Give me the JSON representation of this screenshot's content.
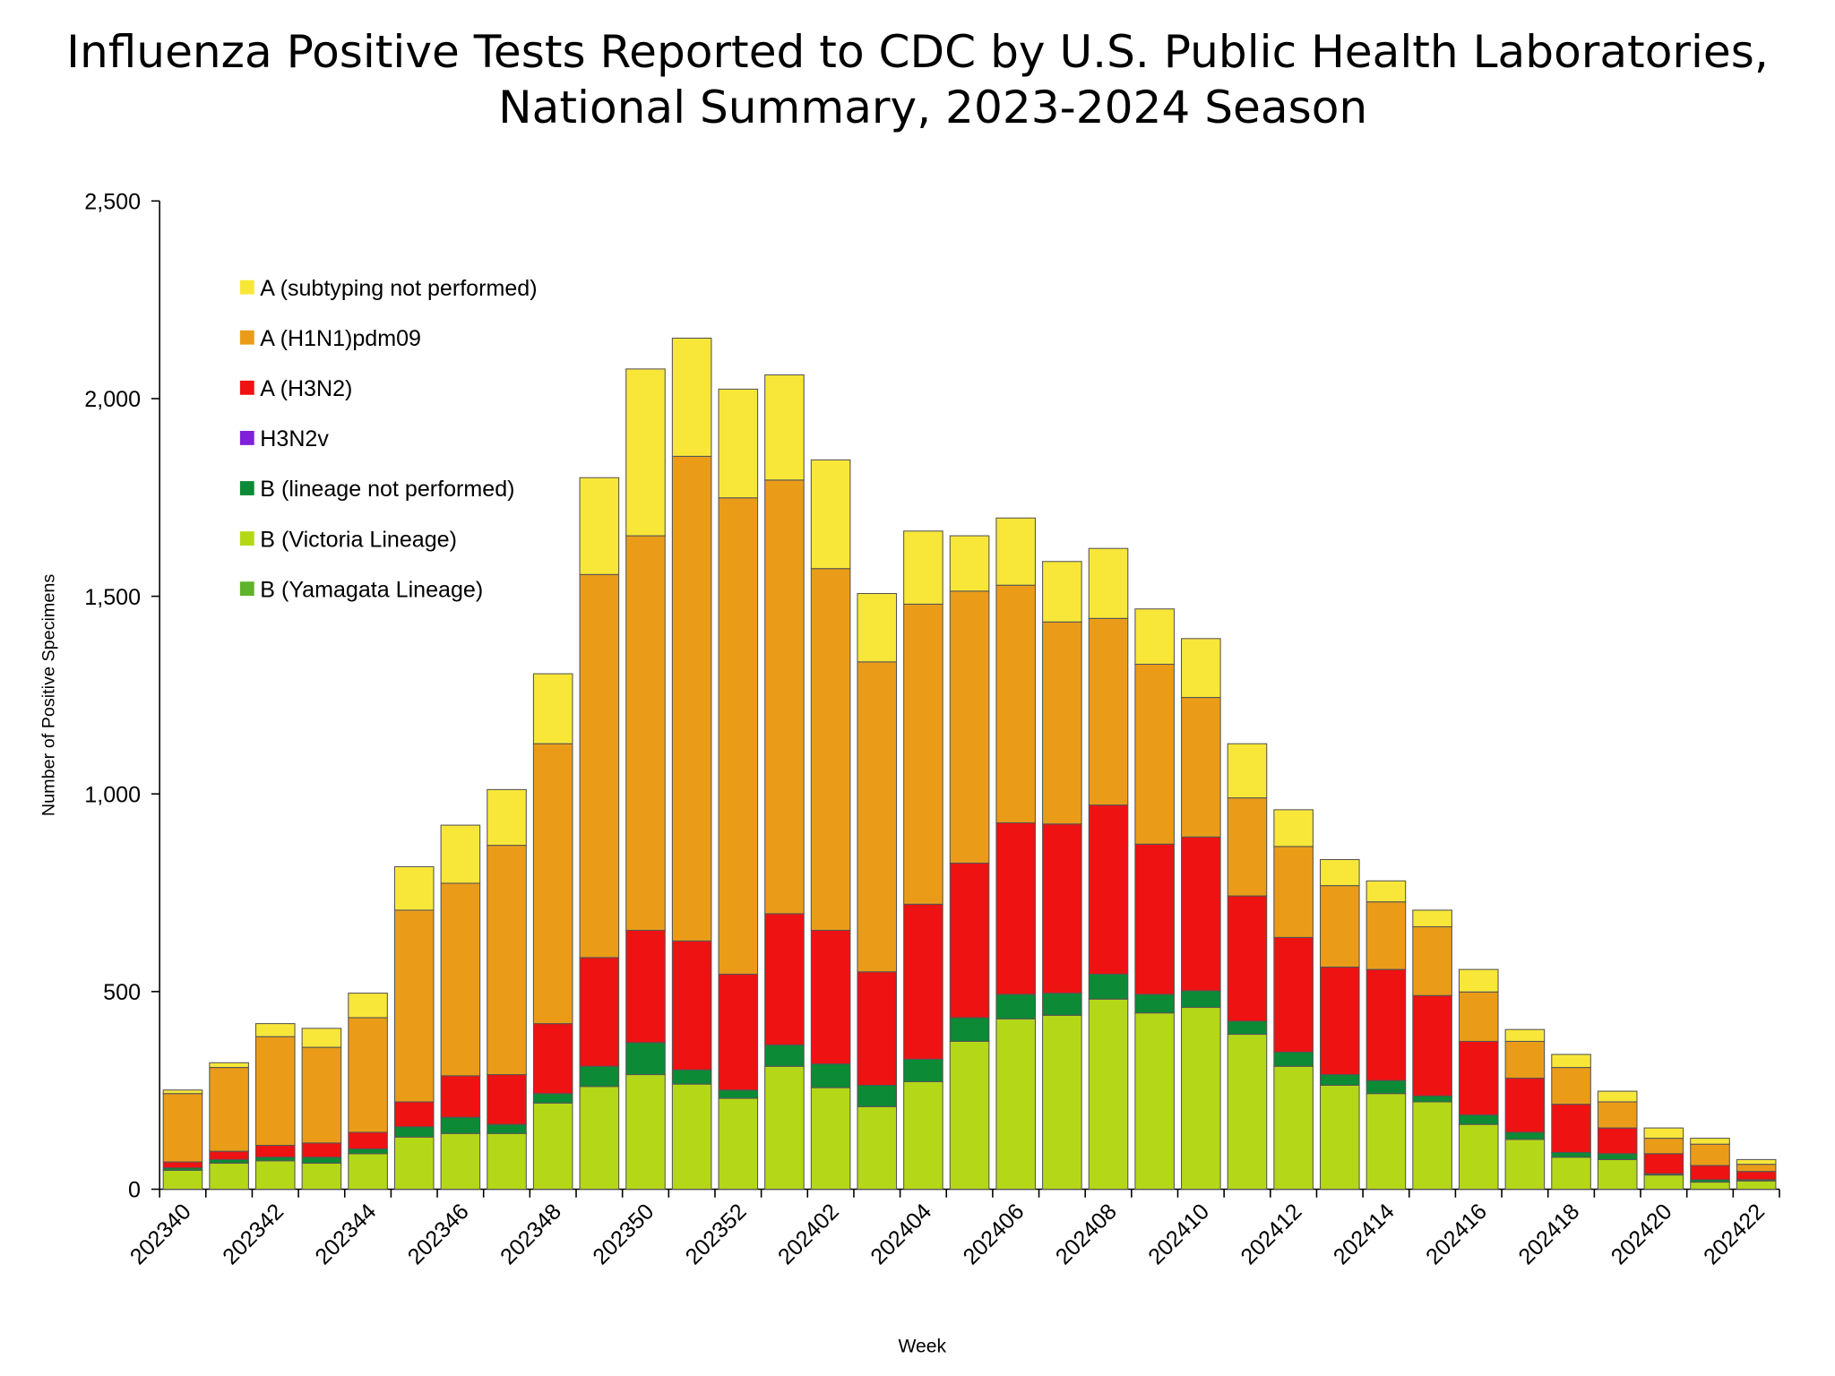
{
  "chart_data": {
    "type": "stacked_bar",
    "title": [
      "Influenza Positive Tests Reported to CDC by U.S. Public Health Laboratories,",
      "National Summary, 2023-2024 Season"
    ],
    "x_label": "Week",
    "y_label": "Number of Positive Specimens",
    "categories": [
      "202340",
      null,
      "202342",
      null,
      "202344",
      null,
      "202346",
      null,
      "202348",
      null,
      "202350",
      null,
      "202352",
      null,
      "202402",
      null,
      "202404",
      null,
      "202406",
      null,
      "202408",
      null,
      "202410",
      null,
      "202412",
      null,
      "202414",
      null,
      "202416",
      null,
      "202418",
      null,
      "202420",
      null,
      "202422"
    ],
    "ylim": [
      0,
      2500
    ],
    "yticks": [
      0,
      500,
      {
        "value": 1000,
        "label": "1,000"
      },
      {
        "value": 1500,
        "label": "1,500"
      },
      {
        "value": 2000,
        "label": "2,000"
      },
      {
        "value": 2500,
        "label": "2,500"
      }
    ],
    "legend": "upper left",
    "series": [
      {
        "name": "A (subtyping not performed)",
        "color": "#f8e739",
        "values": [
          9,
          12,
          33,
          48,
          62,
          110,
          147,
          141,
          177,
          245,
          422,
          299,
          275,
          266,
          275,
          173,
          185,
          140,
          170,
          153,
          177,
          140,
          149,
          137,
          93,
          66,
          53,
          42,
          57,
          30,
          33,
          27,
          26,
          15,
          12
        ]
      },
      {
        "name": "A (H1N1)pdm09",
        "color": "#ea9c19",
        "values": [
          173,
          212,
          275,
          242,
          290,
          485,
          487,
          580,
          708,
          969,
          998,
          1226,
          1205,
          1097,
          915,
          784,
          759,
          688,
          601,
          511,
          472,
          455,
          353,
          248,
          230,
          206,
          171,
          174,
          125,
          93,
          93,
          66,
          39,
          54,
          18
        ]
      },
      {
        "name": "A (H3N2)",
        "color": "#ee1212",
        "values": [
          15,
          21,
          30,
          36,
          42,
          63,
          105,
          126,
          177,
          275,
          284,
          326,
          293,
          332,
          338,
          287,
          392,
          391,
          434,
          428,
          428,
          380,
          389,
          317,
          290,
          272,
          281,
          254,
          186,
          137,
          122,
          65,
          51,
          36,
          21
        ]
      },
      {
        "name": "H3N2v",
        "color": "#8020d8",
        "values": [
          0,
          0,
          0,
          0,
          0,
          0,
          0,
          0,
          0,
          0,
          0,
          0,
          0,
          0,
          0,
          0,
          0,
          0,
          0,
          0,
          0,
          0,
          0,
          0,
          0,
          0,
          0,
          0,
          0,
          0,
          0,
          0,
          0,
          0,
          0
        ]
      },
      {
        "name": "B (lineage not performed)",
        "color": "#0c8a35",
        "values": [
          6,
          9,
          9,
          15,
          12,
          26,
          41,
          23,
          24,
          51,
          81,
          36,
          21,
          54,
          60,
          54,
          57,
          60,
          62,
          56,
          63,
          47,
          42,
          33,
          36,
          27,
          33,
          15,
          24,
          18,
          12,
          15,
          3,
          6,
          3
        ]
      },
      {
        "name": "B (Victoria Lineage)",
        "color": "#b4d818",
        "values": [
          48,
          66,
          72,
          66,
          90,
          132,
          141,
          141,
          218,
          260,
          290,
          266,
          230,
          311,
          257,
          209,
          272,
          374,
          431,
          440,
          481,
          446,
          460,
          392,
          311,
          263,
          242,
          221,
          164,
          126,
          81,
          75,
          36,
          18,
          21
        ]
      },
      {
        "name": "B (Yamagata Lineage)",
        "color": "#5fb22b",
        "values": [
          0,
          0,
          0,
          0,
          0,
          0,
          0,
          0,
          0,
          0,
          0,
          0,
          0,
          0,
          0,
          0,
          0,
          0,
          0,
          0,
          0,
          0,
          0,
          0,
          0,
          0,
          0,
          0,
          0,
          0,
          0,
          0,
          0,
          0,
          0
        ]
      }
    ]
  }
}
